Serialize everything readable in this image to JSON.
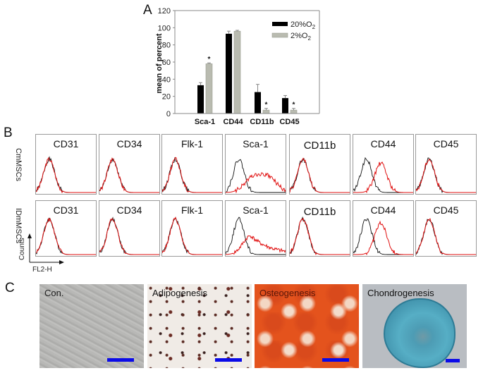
{
  "panels": {
    "a": "A",
    "b": "B",
    "c": "C"
  },
  "chart_data": {
    "type": "bar",
    "title": "",
    "xlabel": "",
    "ylabel": "mean of percent",
    "ylim": [
      0,
      120
    ],
    "yticks": [
      0,
      20,
      40,
      60,
      80,
      100,
      120
    ],
    "categories": [
      "Sca-1",
      "CD44",
      "CD11b",
      "CD45"
    ],
    "series": [
      {
        "name": "20%O2",
        "legend_main": "20%O",
        "legend_sub": "2",
        "color": "#000000",
        "values": [
          33,
          93,
          25,
          18
        ],
        "errors": [
          3,
          3,
          9,
          3
        ],
        "significant": [
          false,
          false,
          false,
          false
        ]
      },
      {
        "name": "2%O2",
        "legend_main": "2%O",
        "legend_sub": "2",
        "color": "#b9bbb0",
        "values": [
          58,
          96,
          4,
          4
        ],
        "errors": [
          1,
          1,
          2,
          2
        ],
        "significant": [
          true,
          false,
          true,
          true
        ]
      }
    ],
    "significance_marker": "*",
    "legend_position": "top-right",
    "grid": false
  },
  "flow": {
    "markers": [
      "CD31",
      "CD34",
      "Flk-1",
      "Sca-1",
      "CD11b",
      "CD44",
      "CD45"
    ],
    "rows": [
      {
        "label": "CmMSCs",
        "shifted": {
          "Sca-1": "broad",
          "CD44": "shift"
        }
      },
      {
        "label": "IDmMSCs",
        "shifted": {
          "Sca-1": "broad",
          "CD44": "shift"
        }
      }
    ],
    "y_axis_label": "Counts",
    "x_axis_label": "FL2-H",
    "colors": {
      "isotype": "#111111",
      "stained": "#e01010"
    }
  },
  "differentiation": [
    {
      "label": "Con.",
      "stain": "phase"
    },
    {
      "label": "Adipogenesis",
      "stain": "oil-red"
    },
    {
      "label": "Osteogenesis",
      "stain": "alizarin"
    },
    {
      "label": "Chondrogenesis",
      "stain": "alcian"
    }
  ],
  "scalebar_color": "#0a0ae8"
}
